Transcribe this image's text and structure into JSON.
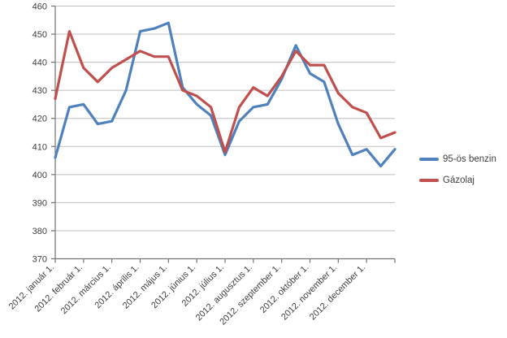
{
  "chart_data": {
    "type": "line",
    "title": "",
    "x_tick_labels": [
      "2012. január 1.",
      "2012. február 1.",
      "2012. március 1.",
      "2012. április 1.",
      "2012. május 1.",
      "2012. június 1.",
      "2012. július 1.",
      "2012. augusztus 1.",
      "2012. szeptember 1.",
      "2012. október 1.",
      "2012. november 1.",
      "2012. december 1."
    ],
    "x_resolution": "2 data points per month (1st and 15th) plus year end, 25 points total",
    "series": [
      {
        "id": "95-os-benzin",
        "name": "95-ös benzin",
        "color": "#4F81BD",
        "values": [
          406,
          424,
          425,
          418,
          419,
          430,
          451,
          452,
          454,
          431,
          425,
          421,
          407,
          419,
          424,
          425,
          434,
          446,
          436,
          433,
          418,
          407,
          409,
          403,
          409
        ]
      },
      {
        "id": "gazolaj",
        "name": "Gázolaj",
        "color": "#C0504D",
        "values": [
          427,
          451,
          438,
          433,
          438,
          441,
          444,
          442,
          442,
          430,
          428,
          424,
          408,
          424,
          431,
          428,
          435,
          444,
          439,
          439,
          429,
          424,
          422,
          413,
          415
        ]
      }
    ],
    "ylim": [
      370,
      460
    ],
    "y_tick_step": 10,
    "y_tick_labels": [
      "370",
      "380",
      "390",
      "400",
      "410",
      "420",
      "430",
      "440",
      "450",
      "460"
    ],
    "grid": "horizontal",
    "legend_position": "right-middle",
    "colors": {
      "grid": "#BFBFBF",
      "axis": "#737373",
      "text": "#3F3F3F",
      "background": "#FFFFFF"
    }
  }
}
